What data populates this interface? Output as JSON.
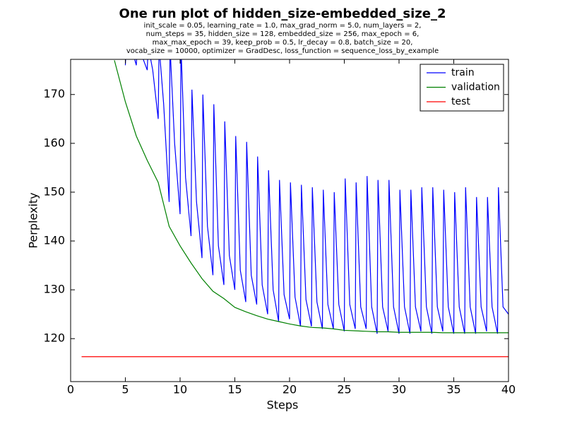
{
  "chart_data": {
    "type": "line",
    "title": "One run plot of hidden_size-embedded_size_2",
    "subtitle": [
      "init_scale = 0.05, learning_rate = 1.0, max_grad_norm = 5.0, num_layers = 2,",
      "num_steps = 35, hidden_size = 128, embedded_size = 256, max_epoch = 6,",
      "max_max_epoch = 39, keep_prob = 0.5, lr_decay = 0.8, batch_size = 20,",
      "vocab_size = 10000, optimizer = GradDesc, loss_function = sequence_loss_by_example"
    ],
    "x_label": "Steps",
    "y_label": "Perplexity",
    "xlim": [
      0,
      40
    ],
    "xticks": [
      0,
      5,
      10,
      15,
      20,
      25,
      30,
      35,
      40
    ],
    "ylim": [
      111.2,
      177.2
    ],
    "yticks": [
      120,
      130,
      140,
      150,
      160,
      170
    ],
    "legend": "upper right",
    "series": [
      {
        "name": "train",
        "color": "#0000ff",
        "x": [
          5,
          5.08,
          5.5,
          6,
          6.08,
          6.5,
          7,
          7.08,
          7.5,
          8,
          8.08,
          8.5,
          9,
          9.08,
          9.5,
          10,
          10.08,
          10.5,
          11,
          11.08,
          11.5,
          12,
          12.08,
          12.5,
          13,
          13.08,
          13.5,
          14,
          14.08,
          14.5,
          15,
          15.08,
          15.5,
          16,
          16.08,
          16.5,
          17,
          17.08,
          17.5,
          18,
          18.08,
          18.5,
          19,
          19.08,
          19.5,
          20,
          20.08,
          20.5,
          21,
          21.08,
          21.5,
          22,
          22.08,
          22.5,
          23,
          23.08,
          23.5,
          24,
          24.08,
          24.5,
          25,
          25.08,
          25.5,
          26,
          26.08,
          26.5,
          27,
          27.08,
          27.5,
          28,
          28.08,
          28.5,
          29,
          29.08,
          29.5,
          30,
          30.08,
          30.5,
          31,
          31.08,
          31.5,
          32,
          32.08,
          32.5,
          33,
          33.08,
          33.5,
          34,
          34.08,
          34.5,
          35,
          35.08,
          35.5,
          36,
          36.08,
          36.5,
          37,
          37.08,
          37.5,
          38,
          38.08,
          38.5,
          39,
          39.08,
          39.5,
          40
        ],
        "values": [
          176,
          180,
          180,
          176,
          180,
          178,
          175,
          180,
          175,
          165,
          180,
          168,
          148,
          180,
          160,
          145.5,
          180,
          153,
          141,
          171,
          148,
          136.5,
          170,
          143,
          133,
          168,
          139,
          131,
          164.5,
          137,
          130,
          161.5,
          134,
          127.5,
          160.3,
          133,
          127,
          157.3,
          131,
          125,
          154.5,
          130,
          123.5,
          152.5,
          129,
          124,
          152,
          128.5,
          122.5,
          151.5,
          128,
          122.5,
          151,
          127.5,
          122,
          150.5,
          127,
          122,
          150,
          127,
          121.5,
          152.8,
          127,
          122,
          152,
          126.5,
          122,
          153.3,
          126.5,
          121,
          152.5,
          126.5,
          121.5,
          152.5,
          126.5,
          121,
          150.5,
          126.5,
          121,
          150.5,
          126.5,
          121.5,
          151,
          126.5,
          121,
          151,
          126.5,
          121.5,
          150.5,
          126.5,
          121,
          150,
          126.5,
          121,
          151,
          126.5,
          121,
          149,
          126.5,
          121.5,
          149,
          126.5,
          121,
          151,
          126.5,
          125
        ]
      },
      {
        "name": "validation",
        "color": "#008000",
        "x": [
          4,
          5,
          6,
          7,
          8,
          9,
          10,
          11,
          12,
          13,
          14,
          15,
          16,
          17,
          18,
          19,
          20,
          21,
          22,
          23,
          24,
          25,
          26,
          27,
          28,
          29,
          30,
          31,
          32,
          33,
          34,
          35,
          36,
          37,
          38,
          39,
          40
        ],
        "values": [
          177,
          168.5,
          161.5,
          156.5,
          152,
          143,
          139,
          135.5,
          132.3,
          129.7,
          128.2,
          126.4,
          125.5,
          124.7,
          124,
          123.5,
          123,
          122.6,
          122.3,
          122.2,
          122,
          121.7,
          121.6,
          121.5,
          121.4,
          121.4,
          121.3,
          121.3,
          121.3,
          121.3,
          121.2,
          121.2,
          121.2,
          121.2,
          121.2,
          121.2,
          121.2
        ]
      },
      {
        "name": "test",
        "color": "#ff0000",
        "x": [
          1,
          40
        ],
        "values": [
          116.3,
          116.3
        ]
      }
    ]
  }
}
